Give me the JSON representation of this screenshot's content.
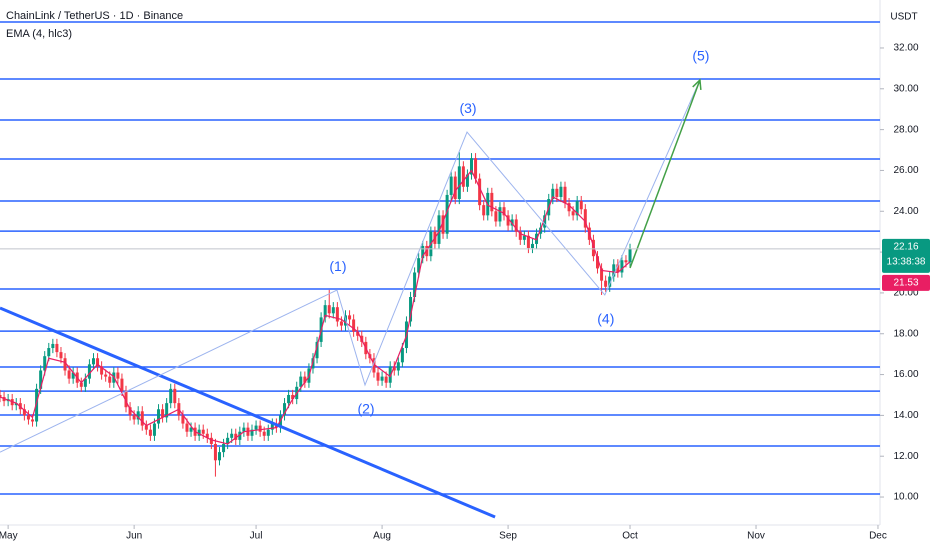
{
  "chart_data": {
    "type": "candlestick",
    "title": "ChainLink / TetherUS · 1D · Binance",
    "indicator": "EMA (4, hlc3)",
    "y_axis_label": "USDT",
    "countdown": "13:38:38",
    "up_color": "#089981",
    "down_color": "#f23645",
    "xlim": [
      0,
      216.5
    ],
    "xticks": [
      {
        "value": 2,
        "label": "May"
      },
      {
        "value": 33,
        "label": "Jun"
      },
      {
        "value": 63,
        "label": "Jul"
      },
      {
        "value": 94,
        "label": "Aug"
      },
      {
        "value": 125,
        "label": "Sep"
      },
      {
        "value": 155,
        "label": "Oct"
      },
      {
        "value": 186,
        "label": "Nov"
      },
      {
        "value": 216,
        "label": "Dec"
      }
    ],
    "ylim": [
      8.63,
      34.35
    ],
    "yticks": [
      {
        "value": 10,
        "label": "10.00"
      },
      {
        "value": 12,
        "label": "12.00"
      },
      {
        "value": 14,
        "label": "14.00"
      },
      {
        "value": 16,
        "label": "16.00"
      },
      {
        "value": 18,
        "label": "18.00"
      },
      {
        "value": 20,
        "label": "20.00"
      },
      {
        "value": 22,
        "label": "22.00"
      },
      {
        "value": 24,
        "label": "24.00"
      },
      {
        "value": 26,
        "label": "26.00"
      },
      {
        "value": 28,
        "label": "28.00"
      },
      {
        "value": 30,
        "label": "30.00"
      },
      {
        "value": 32,
        "label": "32.00"
      }
    ],
    "x": [
      0,
      1,
      2,
      3,
      4,
      5,
      6,
      7,
      8,
      9,
      10,
      11,
      12,
      13,
      14,
      15,
      16,
      17,
      18,
      19,
      20,
      21,
      22,
      23,
      24,
      25,
      26,
      27,
      28,
      29,
      30,
      31,
      32,
      33,
      34,
      35,
      36,
      37,
      38,
      39,
      40,
      41,
      42,
      43,
      44,
      45,
      46,
      47,
      48,
      49,
      50,
      51,
      52,
      53,
      54,
      55,
      56,
      57,
      58,
      59,
      60,
      61,
      62,
      63,
      64,
      65,
      66,
      67,
      68,
      69,
      70,
      71,
      72,
      73,
      74,
      75,
      76,
      77,
      78,
      79,
      80,
      81,
      82,
      83,
      84,
      85,
      86,
      87,
      88,
      89,
      90,
      91,
      92,
      93,
      94,
      95,
      96,
      97,
      98,
      99,
      100,
      101,
      102,
      103,
      104,
      105,
      106,
      107,
      108,
      109,
      110,
      111,
      112,
      113,
      114,
      115,
      116,
      117,
      118,
      119,
      120,
      121,
      122,
      123,
      124,
      125,
      126,
      127,
      128,
      129,
      130,
      131,
      132,
      133,
      134,
      135,
      136,
      137,
      138,
      139,
      140,
      141,
      142,
      143,
      144,
      145,
      146,
      147,
      148,
      149,
      150,
      151,
      152,
      153,
      154,
      155
    ],
    "open": [
      15.0,
      14.9,
      14.7,
      14.8,
      14.5,
      14.6,
      14.3,
      14.0,
      13.8,
      13.7,
      15.3,
      16.2,
      16.9,
      17.3,
      17.5,
      17.1,
      16.8,
      16.2,
      15.8,
      16.1,
      15.6,
      15.4,
      15.8,
      16.5,
      16.8,
      16.4,
      16.0,
      15.9,
      15.6,
      16.1,
      15.8,
      15.2,
      14.4,
      14.0,
      13.8,
      14.2,
      13.5,
      13.3,
      13.0,
      13.6,
      14.3,
      13.9,
      14.6,
      15.3,
      14.6,
      14.0,
      13.6,
      13.2,
      13.4,
      13.0,
      13.3,
      13.1,
      12.9,
      12.6,
      11.8,
      12.2,
      12.6,
      12.9,
      13.1,
      12.8,
      13.2,
      13.4,
      13.0,
      13.3,
      13.5,
      13.2,
      13.0,
      13.3,
      13.6,
      13.4,
      14.0,
      14.6,
      15.0,
      14.8,
      15.4,
      15.9,
      15.6,
      16.3,
      16.8,
      17.6,
      18.8,
      19.4,
      19.0,
      19.3,
      18.6,
      18.4,
      18.9,
      18.7,
      18.1,
      17.9,
      17.6,
      17.0,
      16.8,
      16.1,
      15.7,
      15.9,
      15.6,
      16.4,
      16.2,
      16.6,
      17.3,
      18.6,
      19.8,
      21.0,
      21.7,
      22.3,
      21.8,
      23.0,
      22.4,
      23.8,
      22.9,
      24.8,
      25.7,
      24.6,
      26.2,
      25.2,
      25.8,
      26.6,
      25.6,
      24.3,
      23.8,
      24.9,
      24.0,
      23.5,
      24.2,
      23.8,
      23.3,
      23.6,
      23.0,
      22.6,
      22.8,
      22.2,
      22.4,
      22.9,
      23.2,
      23.8,
      24.6,
      25.1,
      24.7,
      25.2,
      24.4,
      24.0,
      23.8,
      24.5,
      24.1,
      23.2,
      22.6,
      21.8,
      21.2,
      20.6,
      20.3,
      20.8,
      21.4,
      21.0,
      21.6,
      21.5
    ],
    "high": [
      15.25,
      15.15,
      15.05,
      15.05,
      14.85,
      14.85,
      14.55,
      14.25,
      14.05,
      15.55,
      16.45,
      17.15,
      17.55,
      17.75,
      17.75,
      17.35,
      17.05,
      16.45,
      16.35,
      16.35,
      15.85,
      16.05,
      16.75,
      17.05,
      17.05,
      16.65,
      16.25,
      16.15,
      16.35,
      16.35,
      16.05,
      15.45,
      14.65,
      14.25,
      14.45,
      14.45,
      13.75,
      13.55,
      13.85,
      14.55,
      14.55,
      14.85,
      15.55,
      15.55,
      14.85,
      14.25,
      13.85,
      13.65,
      13.65,
      13.55,
      13.55,
      13.35,
      13.15,
      12.85,
      12.45,
      12.85,
      13.15,
      13.35,
      13.35,
      13.45,
      13.65,
      13.65,
      13.55,
      13.75,
      13.75,
      13.45,
      13.55,
      13.85,
      13.85,
      14.25,
      14.85,
      15.25,
      15.25,
      15.65,
      16.15,
      16.15,
      16.55,
      17.05,
      17.85,
      19.05,
      19.65,
      20.15,
      19.55,
      19.55,
      18.85,
      19.15,
      19.15,
      18.95,
      18.35,
      18.15,
      17.85,
      17.25,
      17.05,
      16.35,
      16.15,
      16.15,
      16.65,
      16.65,
      16.85,
      17.55,
      18.85,
      20.05,
      21.25,
      21.95,
      22.55,
      22.55,
      23.25,
      23.25,
      24.05,
      24.05,
      25.05,
      25.95,
      25.95,
      26.9,
      26.45,
      26.05,
      26.85,
      26.85,
      25.85,
      24.55,
      25.15,
      25.15,
      24.25,
      24.45,
      24.45,
      24.05,
      23.85,
      23.85,
      23.25,
      23.05,
      23.05,
      22.65,
      23.15,
      23.45,
      24.05,
      24.85,
      25.35,
      25.35,
      25.45,
      25.45,
      24.65,
      24.25,
      24.75,
      24.75,
      24.35,
      23.45,
      22.85,
      22.05,
      21.45,
      20.85,
      21.05,
      21.65,
      21.65,
      21.85,
      21.85,
      22.41
    ],
    "low": [
      14.65,
      14.45,
      14.45,
      14.25,
      14.25,
      14.05,
      13.75,
      13.55,
      13.45,
      13.45,
      15.05,
      15.95,
      16.65,
      17.05,
      16.85,
      16.55,
      15.95,
      15.55,
      15.55,
      15.35,
      15.15,
      15.15,
      15.55,
      16.25,
      16.15,
      15.75,
      15.65,
      15.35,
      15.35,
      15.55,
      14.95,
      14.15,
      13.75,
      13.55,
      13.55,
      13.25,
      13.05,
      12.75,
      12.75,
      13.35,
      13.65,
      13.65,
      14.35,
      14.35,
      13.75,
      13.35,
      12.95,
      12.95,
      12.75,
      12.75,
      12.85,
      12.65,
      12.35,
      11.0,
      11.55,
      11.95,
      12.35,
      12.65,
      12.55,
      12.55,
      12.95,
      12.75,
      12.75,
      13.05,
      12.95,
      12.75,
      12.75,
      13.05,
      13.15,
      13.15,
      13.75,
      14.35,
      14.55,
      14.55,
      15.15,
      15.35,
      15.35,
      16.05,
      16.55,
      17.35,
      18.55,
      18.75,
      18.75,
      18.35,
      18.15,
      18.15,
      18.45,
      17.85,
      17.65,
      17.35,
      16.75,
      16.55,
      15.85,
      15.45,
      15.45,
      15.35,
      15.35,
      15.95,
      15.95,
      16.35,
      17.05,
      18.35,
      19.55,
      20.75,
      21.45,
      21.55,
      21.55,
      22.15,
      22.15,
      22.65,
      22.65,
      24.55,
      24.35,
      24.35,
      24.95,
      24.95,
      25.55,
      25.35,
      24.05,
      23.55,
      23.55,
      23.75,
      23.25,
      23.25,
      23.55,
      23.05,
      23.05,
      22.75,
      22.35,
      22.35,
      21.95,
      21.95,
      22.15,
      22.65,
      22.95,
      23.55,
      24.35,
      24.45,
      24.45,
      24.15,
      23.75,
      23.55,
      23.55,
      23.85,
      22.95,
      22.35,
      21.55,
      20.95,
      19.9,
      20.05,
      20.05,
      20.55,
      20.75,
      20.75,
      21.25,
      21.25
    ],
    "close": [
      14.9,
      14.7,
      14.8,
      14.5,
      14.6,
      14.3,
      14.0,
      13.8,
      13.7,
      15.3,
      16.2,
      16.9,
      17.3,
      17.5,
      17.1,
      16.8,
      16.2,
      15.8,
      16.1,
      15.6,
      15.4,
      15.8,
      16.5,
      16.8,
      16.4,
      16.0,
      15.9,
      15.6,
      16.1,
      15.8,
      15.2,
      14.4,
      14.0,
      13.8,
      14.2,
      13.5,
      13.3,
      13.0,
      13.6,
      14.3,
      13.9,
      14.6,
      15.3,
      14.6,
      14.0,
      13.6,
      13.2,
      13.4,
      13.0,
      13.3,
      13.1,
      12.9,
      12.6,
      11.8,
      12.2,
      12.6,
      12.9,
      13.1,
      12.8,
      13.2,
      13.4,
      13.0,
      13.3,
      13.5,
      13.2,
      13.0,
      13.3,
      13.6,
      13.4,
      14.0,
      14.6,
      15.0,
      14.8,
      15.4,
      15.9,
      15.6,
      16.3,
      16.8,
      17.6,
      18.8,
      19.4,
      19.0,
      19.3,
      18.6,
      18.4,
      18.9,
      18.7,
      18.1,
      17.9,
      17.6,
      17.0,
      16.8,
      16.1,
      15.7,
      15.9,
      15.6,
      16.4,
      16.2,
      16.6,
      17.3,
      18.6,
      19.8,
      21.0,
      21.7,
      22.3,
      21.8,
      23.0,
      22.4,
      23.8,
      22.9,
      24.8,
      25.7,
      24.6,
      26.2,
      25.2,
      25.8,
      26.6,
      25.6,
      24.3,
      23.8,
      24.9,
      24.0,
      23.5,
      24.2,
      23.8,
      23.3,
      23.6,
      23.0,
      22.6,
      22.8,
      22.2,
      22.4,
      22.9,
      23.2,
      23.8,
      24.6,
      25.1,
      24.7,
      25.2,
      24.4,
      24.0,
      23.8,
      24.5,
      24.1,
      23.2,
      22.6,
      21.8,
      21.2,
      20.6,
      20.3,
      20.8,
      21.4,
      21.0,
      21.6,
      21.5,
      22.16
    ],
    "ema": {
      "color": "#e91e63",
      "x": [
        0,
        4,
        8,
        12,
        16,
        20,
        24,
        28,
        32,
        36,
        40,
        44,
        48,
        52,
        56,
        60,
        64,
        68,
        72,
        76,
        80,
        84,
        88,
        92,
        96,
        100,
        104,
        108,
        112,
        116,
        120,
        124,
        128,
        132,
        136,
        140,
        144,
        148,
        152,
        155
      ],
      "values": [
        14.9,
        14.6,
        13.9,
        16.8,
        16.6,
        15.6,
        16.5,
        15.9,
        14.3,
        13.5,
        13.9,
        14.3,
        13.2,
        12.8,
        12.6,
        13.2,
        13.3,
        13.4,
        14.8,
        15.9,
        18.9,
        18.7,
        18.1,
        16.5,
        15.9,
        17.9,
        21.8,
        23.0,
        25.0,
        26.0,
        24.3,
        23.9,
        22.9,
        22.6,
        24.7,
        24.3,
        23.5,
        21.1,
        21.0,
        21.53
      ]
    },
    "levels": {
      "color": "#2962ff",
      "values": [
        33.27,
        30.48,
        28.47,
        26.56,
        24.5,
        23.03,
        20.19,
        18.13,
        16.37,
        15.19,
        14.02,
        12.5,
        10.15
      ]
    },
    "trendline": {
      "color": "#2962ff",
      "x": [
        0,
        121.8
      ],
      "y": [
        19.26,
        9.02
      ]
    },
    "waves": {
      "color": "#9db4ee",
      "label_color": "#2962ff",
      "x": [
        0,
        82.9,
        89.8,
        114.9,
        148.8,
        172.2
      ],
      "y": [
        12.2,
        20.14,
        15.49,
        27.88,
        19.9,
        30.43
      ],
      "labels": [
        null,
        "(1)",
        "(2)",
        "(3)",
        "(4)",
        "(5)"
      ]
    },
    "projection": {
      "color": "#43a047",
      "x": [
        155,
        172.2
      ],
      "y": [
        21.22,
        30.43
      ]
    }
  }
}
